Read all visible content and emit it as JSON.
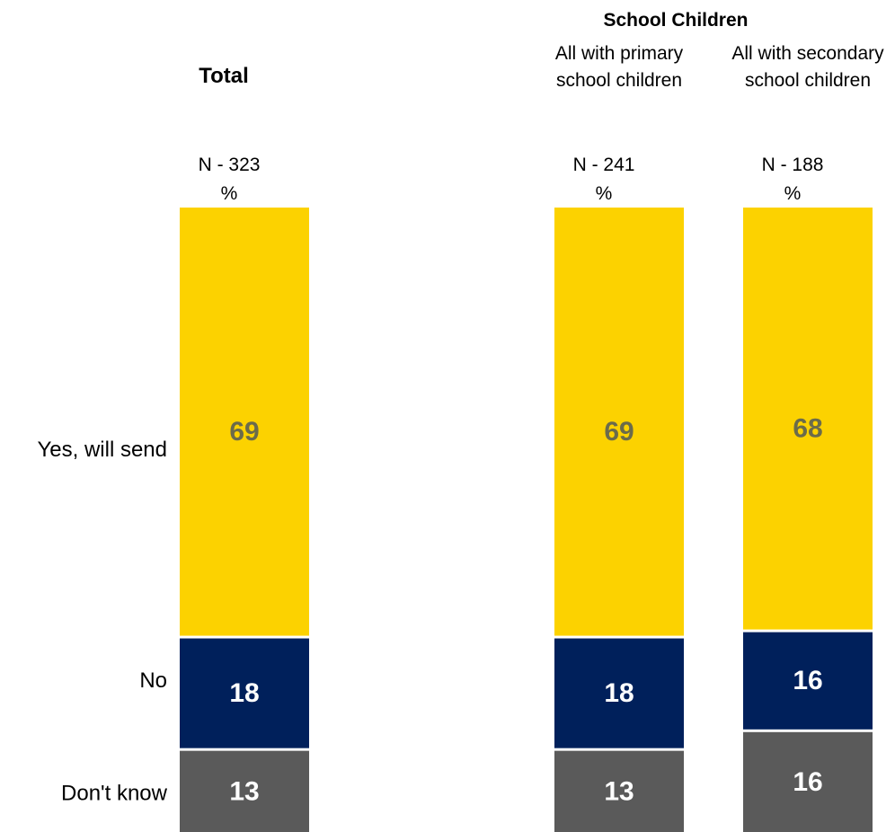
{
  "chart_data": {
    "type": "bar",
    "stacked": true,
    "unit": "%",
    "group_header": "School Children",
    "categories": [
      {
        "label": "Total",
        "label_style": "bold",
        "n_label": "N - 323",
        "pct_label": "%"
      },
      {
        "label": "All with primary school children",
        "label_lines": [
          "All with primary",
          "school children"
        ],
        "label_style": "normal",
        "n_label": "N - 241",
        "pct_label": "%"
      },
      {
        "label": "All with secondary school children",
        "label_lines": [
          "All with secondary",
          "school children"
        ],
        "label_style": "normal",
        "n_label": "N - 188",
        "pct_label": "%"
      }
    ],
    "series": [
      {
        "name": "Yes, will send",
        "color": "#FCD200",
        "label_color": "#6B6B4B",
        "values": [
          69,
          69,
          68
        ]
      },
      {
        "name": "No",
        "color": "#00205B",
        "label_color": "#FFFFFF",
        "values": [
          18,
          18,
          16
        ]
      },
      {
        "name": "Don't know",
        "color": "#5A5A5A",
        "label_color": "#FFFFFF",
        "values": [
          13,
          13,
          16
        ]
      }
    ],
    "ylim": [
      0,
      100
    ],
    "legend_position": "left"
  }
}
